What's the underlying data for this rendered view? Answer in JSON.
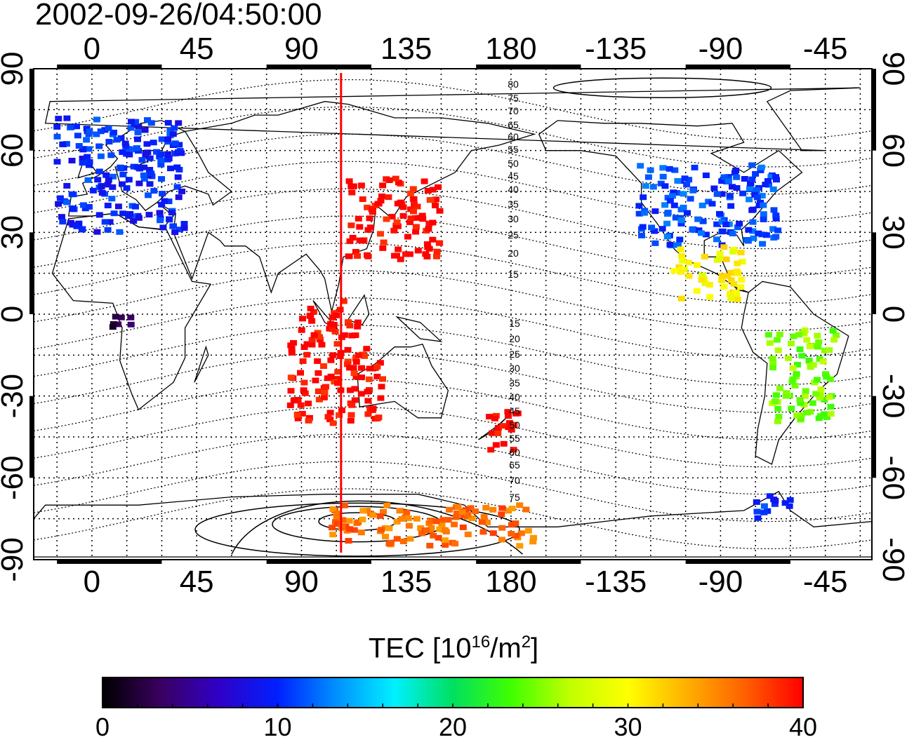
{
  "title": "2002-09-26/04:50:00",
  "colorbar": {
    "label_prefix": "TEC  [10",
    "label_exp1": "16",
    "label_mid": "/m",
    "label_exp2": "2",
    "label_suffix": "]",
    "ticks": [
      "0",
      "10",
      "20",
      "30",
      "40"
    ],
    "range": [
      0,
      40
    ],
    "colors": [
      "#000000",
      "#3a0060",
      "#3000c8",
      "#0020ff",
      "#0090ff",
      "#00f0ff",
      "#00e060",
      "#40ff00",
      "#c0ff00",
      "#ffff00",
      "#ffb000",
      "#ff6000",
      "#ff0000"
    ]
  },
  "axes": {
    "top_ticks": [
      "0",
      "45",
      "90",
      "135",
      "180",
      "-135",
      "-90",
      "-45"
    ],
    "bottom_ticks": [
      "0",
      "45",
      "90",
      "135",
      "180",
      "-135",
      "-90",
      "-45"
    ],
    "left_ticks": [
      "90",
      "60",
      "30",
      "0",
      "-30",
      "-60",
      "-90"
    ],
    "right_ticks": [
      "90",
      "60",
      "30",
      "0",
      "-30",
      "-60",
      "-90"
    ]
  },
  "contour_labels": {
    "north": [
      "80",
      "75",
      "70",
      "65",
      "60",
      "55",
      "50",
      "45",
      "40",
      "35",
      "30",
      "25",
      "20",
      "15"
    ],
    "south": [
      "15",
      "20",
      "25",
      "30",
      "35",
      "40",
      "45",
      "50",
      "55",
      "60",
      "65",
      "70",
      "75"
    ]
  },
  "terminator_longitude": 107,
  "colors": {
    "terminator": "#ff0000",
    "frame": "#000000",
    "grid": "#000000"
  },
  "chart_data": {
    "type": "heatmap",
    "title": "2002-09-26/04:50:00",
    "xlabel": "",
    "ylabel": "",
    "xlim": [
      -25,
      335
    ],
    "ylim": [
      -90,
      90
    ],
    "variable": "TEC [10^16/m^2]",
    "clim": [
      0,
      40
    ],
    "regions": [
      {
        "lon": [
          -15,
          40
        ],
        "lat": [
          30,
          72
        ],
        "tec": 10
      },
      {
        "lon": [
          85,
          125
        ],
        "lat": [
          -40,
          -10
        ],
        "tec": 40
      },
      {
        "lon": [
          110,
          150
        ],
        "lat": [
          20,
          50
        ],
        "tec": 40
      },
      {
        "lon": [
          -125,
          -65
        ],
        "lat": [
          25,
          55
        ],
        "tec": 11
      },
      {
        "lon": [
          -110,
          -80
        ],
        "lat": [
          5,
          25
        ],
        "tec": 30
      },
      {
        "lon": [
          -70,
          -40
        ],
        "lat": [
          -40,
          -5
        ],
        "tec": 25
      },
      {
        "lon": [
          170,
          185
        ],
        "lat": [
          -50,
          -35
        ],
        "tec": 40
      },
      {
        "lon": [
          90,
          115
        ],
        "lat": [
          -10,
          5
        ],
        "tec": 40
      },
      {
        "lon": [
          8,
          20
        ],
        "lat": [
          -5,
          2
        ],
        "tec": 2
      },
      {
        "lon": [
          -75,
          -60
        ],
        "lat": [
          -75,
          -65
        ],
        "tec": 10
      },
      {
        "lon": [
          100,
          190
        ],
        "lat": [
          -85,
          -70
        ],
        "tec": 36
      }
    ]
  }
}
